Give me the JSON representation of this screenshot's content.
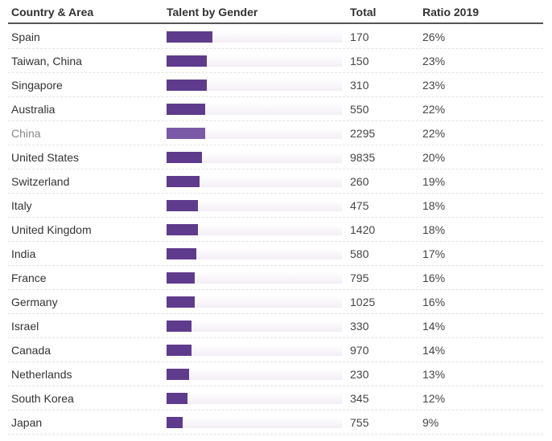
{
  "headers": {
    "country": "Country & Area",
    "gender": "Talent by Gender",
    "total": "Total",
    "ratio": "Ratio 2019"
  },
  "colors": {
    "bar": "#5e3b8c",
    "bar_dim": "#7a5aa6"
  },
  "chart_data": {
    "type": "table",
    "title": "",
    "columns": [
      "Country & Area",
      "Talent by Gender",
      "Total",
      "Ratio 2019"
    ],
    "bar_max_ratio": 100,
    "rows": [
      {
        "country": "Spain",
        "total": "170",
        "ratio": "26%",
        "ratio_value": 26
      },
      {
        "country": "Taiwan, China",
        "total": "150",
        "ratio": "23%",
        "ratio_value": 23
      },
      {
        "country": "Singapore",
        "total": "310",
        "ratio": "23%",
        "ratio_value": 23
      },
      {
        "country": "Australia",
        "total": "550",
        "ratio": "22%",
        "ratio_value": 22
      },
      {
        "country": "China",
        "total": "2295",
        "ratio": "22%",
        "ratio_value": 22,
        "dim": true
      },
      {
        "country": "United States",
        "total": "9835",
        "ratio": "20%",
        "ratio_value": 20
      },
      {
        "country": "Switzerland",
        "total": "260",
        "ratio": "19%",
        "ratio_value": 19
      },
      {
        "country": "Italy",
        "total": "475",
        "ratio": "18%",
        "ratio_value": 18
      },
      {
        "country": "United Kingdom",
        "total": "1420",
        "ratio": "18%",
        "ratio_value": 18
      },
      {
        "country": "India",
        "total": "580",
        "ratio": "17%",
        "ratio_value": 17
      },
      {
        "country": "France",
        "total": "795",
        "ratio": "16%",
        "ratio_value": 16
      },
      {
        "country": "Germany",
        "total": "1025",
        "ratio": "16%",
        "ratio_value": 16
      },
      {
        "country": "Israel",
        "total": "330",
        "ratio": "14%",
        "ratio_value": 14
      },
      {
        "country": "Canada",
        "total": "970",
        "ratio": "14%",
        "ratio_value": 14
      },
      {
        "country": "Netherlands",
        "total": "230",
        "ratio": "13%",
        "ratio_value": 13
      },
      {
        "country": "South Korea",
        "total": "345",
        "ratio": "12%",
        "ratio_value": 12
      },
      {
        "country": "Japan",
        "total": "755",
        "ratio": "9%",
        "ratio_value": 9
      }
    ]
  }
}
